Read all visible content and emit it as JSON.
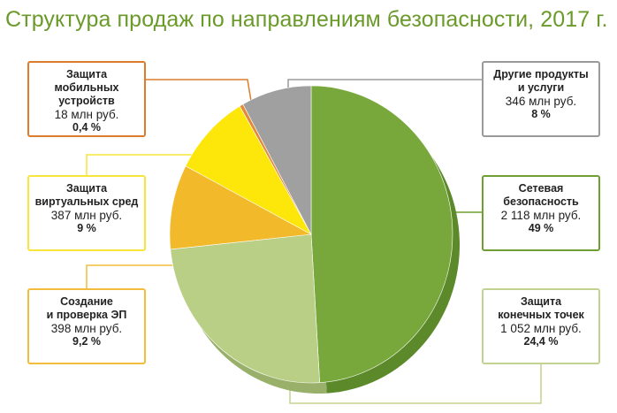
{
  "title": "Структура продаж по направлениям безопасности, 2017 г.",
  "chart_data": {
    "type": "pie",
    "title": "Структура продаж по направлениям безопасности, 2017 г.",
    "slices": [
      {
        "name": "Сетевая безопасность",
        "amount_text": "2 118 млн руб.",
        "value": 2118,
        "percent_text": "49 %",
        "percent": 49,
        "color": "#78a83c",
        "side_color": "#5c8a2a"
      },
      {
        "name": "Защита конечных точек",
        "amount_text": "1 052 млн руб.",
        "value": 1052,
        "percent_text": "24,4 %",
        "percent": 24.4,
        "color": "#b9cf86",
        "side_color": "#98b06a"
      },
      {
        "name": "Создание и проверка ЭП",
        "amount_text": "398 млн руб.",
        "value": 398,
        "percent_text": "9,2 %",
        "percent": 9.2,
        "color": "#f2b92a",
        "side_color": "#c99522"
      },
      {
        "name": "Защита виртуальных сред",
        "amount_text": "387 млн руб.",
        "value": 387,
        "percent_text": "9 %",
        "percent": 9,
        "color": "#fde60a",
        "side_color": "#cfba08"
      },
      {
        "name": "Защита мобильных устройств",
        "amount_text": "18 млн руб.",
        "value": 18,
        "percent_text": "0,4 %",
        "percent": 0.4,
        "color": "#e08a3a",
        "side_color": "#b86e2c"
      },
      {
        "name": "Другие продукты и услуги",
        "amount_text": "346 млн руб.",
        "value": 346,
        "percent_text": "8 %",
        "percent": 8,
        "color": "#a0a0a0",
        "side_color": "#7e7e7e"
      }
    ],
    "label_border_colors": {
      "Сетевая безопасность": "#6f9e33",
      "Защита конечных точек": "#c2d391",
      "Создание и проверка ЭП": "#f2bd3c",
      "Защита виртуальных сред": "#f8e53a",
      "Защита мобильных устройств": "#db7d2c",
      "Другие продукты и услуги": "#9a9a9a"
    }
  },
  "labels": {
    "mobile": {
      "name1": "Защита",
      "name2": "мобильных устройств",
      "amount": "18 млн руб.",
      "pct": "0,4 %"
    },
    "virtual": {
      "name1": "Защита",
      "name2": "виртуальных сред",
      "amount": "387 млн руб.",
      "pct": "9 %"
    },
    "ep": {
      "name1": "Создание",
      "name2": "и проверка ЭП",
      "amount": "398 млн руб.",
      "pct": "9,2 %"
    },
    "other": {
      "name1": "Другие продукты",
      "name2": "и услуги",
      "amount": "346 млн руб.",
      "pct": "8 %"
    },
    "network": {
      "name1": "Сетевая",
      "name2": "безопасность",
      "amount": "2 118 млн руб.",
      "pct": "49 %"
    },
    "endpoint": {
      "name1": "Защита",
      "name2": "конечных точек",
      "amount": "1 052 млн руб.",
      "pct": "24,4 %"
    }
  }
}
